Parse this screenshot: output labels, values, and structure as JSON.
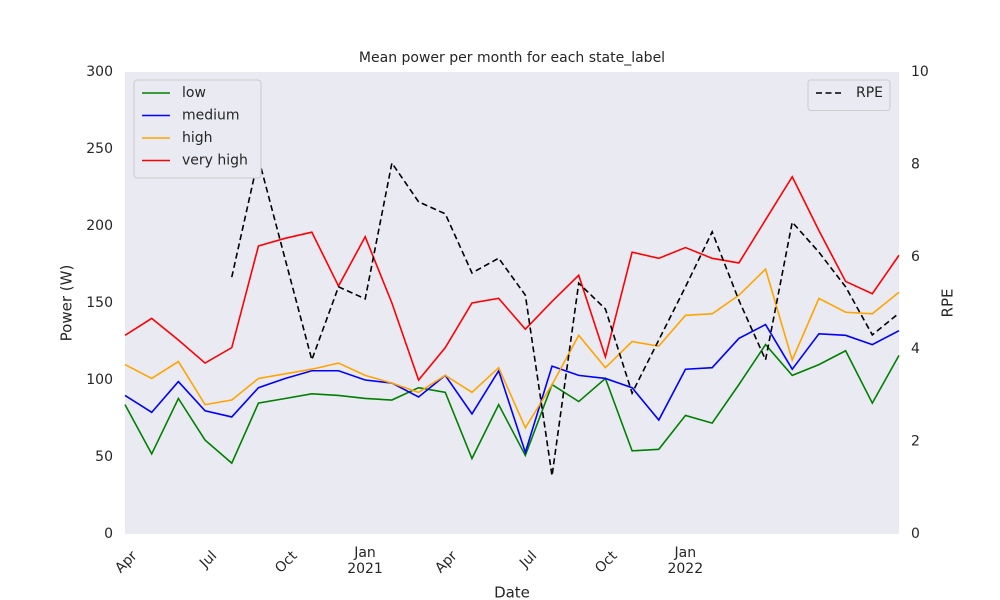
{
  "chart_data": {
    "type": "line",
    "title": "Mean power per month for each state_label",
    "x_label": "Date",
    "y_label": "Power (W)",
    "y2_label": "RPE",
    "categories": [
      "Apr",
      null,
      null,
      "Jul",
      null,
      null,
      "Oct",
      null,
      null,
      "Jan\n2021",
      null,
      null,
      "Apr",
      null,
      null,
      "Jul",
      null,
      null,
      "Oct",
      null,
      null,
      "Jan\n2022",
      null,
      null,
      null,
      null,
      null,
      null,
      null,
      null
    ],
    "ylim": [
      0,
      300
    ],
    "yticks": [
      0,
      50,
      100,
      150,
      200,
      250,
      300
    ],
    "y2lim": [
      0,
      10
    ],
    "y2ticks": [
      0,
      2,
      4,
      6,
      8,
      10
    ],
    "legend": "upper left",
    "legend2": "upper right",
    "series": [
      {
        "name": "low",
        "color": "green",
        "values": [
          84,
          52,
          88,
          61,
          46,
          85,
          88,
          91,
          90,
          88,
          87,
          95,
          92,
          49,
          84,
          51,
          97,
          86,
          101,
          54,
          55,
          77,
          72,
          97,
          123,
          103,
          110,
          119,
          85,
          116
        ]
      },
      {
        "name": "medium",
        "color": "blue",
        "values": [
          90,
          79,
          99,
          80,
          76,
          95,
          101,
          106,
          106,
          100,
          98,
          89,
          103,
          78,
          106,
          53,
          109,
          103,
          101,
          95,
          74,
          107,
          108,
          127,
          136,
          107,
          130,
          129,
          123,
          132
        ]
      },
      {
        "name": "high",
        "color": "orange",
        "values": [
          110,
          101,
          112,
          84,
          87,
          101,
          104,
          107,
          111,
          103,
          98,
          92,
          103,
          92,
          108,
          69,
          97,
          129,
          108,
          125,
          122,
          142,
          143,
          155,
          172,
          113,
          153,
          144,
          143,
          157
        ]
      },
      {
        "name": "very high",
        "color": "red",
        "values": [
          129,
          140,
          126,
          111,
          121,
          187,
          192,
          196,
          161,
          193,
          150,
          100,
          121,
          150,
          153,
          133,
          151,
          168,
          115,
          183,
          179,
          186,
          179,
          176,
          204,
          232,
          197,
          164,
          156,
          181
        ]
      },
      {
        "name": "RPE",
        "color": "black",
        "dashed": true,
        "axis": "y2",
        "values": [
          null,
          null,
          null,
          null,
          5.56,
          8.14,
          5.95,
          3.77,
          5.35,
          5.09,
          8.03,
          7.19,
          6.93,
          5.65,
          5.97,
          5.17,
          1.26,
          5.43,
          4.87,
          3.05,
          4.2,
          5.35,
          6.54,
          5.06,
          3.77,
          6.75,
          6.1,
          5.35,
          4.31,
          4.78
        ]
      }
    ]
  }
}
